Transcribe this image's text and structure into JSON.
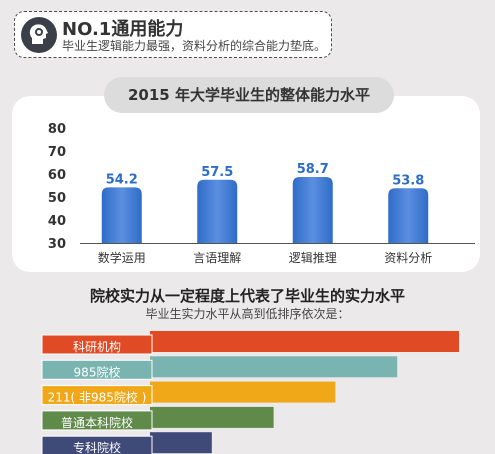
{
  "header": {
    "title": "NO.1通用能力",
    "subtitle": "毕业生逻辑能力最强，资料分析的综合能力垫底。",
    "icon": "gear-head-icon"
  },
  "chart_data": [
    {
      "type": "bar",
      "title": "2015 年大学毕业生的整体能力水平",
      "categories": [
        "数学运用",
        "言语理解",
        "逻辑推理",
        "资料分析"
      ],
      "values": [
        54.2,
        57.5,
        58.7,
        53.8
      ],
      "yticks": [
        30,
        40,
        50,
        60,
        70,
        80
      ],
      "ylim": [
        30,
        80
      ],
      "grid": false,
      "colors": {
        "bar": "#2f6cc8",
        "bar_highlight": "#5b8fe0"
      }
    },
    {
      "type": "bar",
      "orientation": "horizontal",
      "title": "院校实力从一定程度上代表了毕业生的实力水平",
      "subtitle": "毕业生实力水平从高到低排序依次是：",
      "categories": [
        "科研机构",
        "985院校",
        "211（非985院校）",
        "普通本科院校",
        "专科院校"
      ],
      "values": [
        5,
        4,
        3,
        2,
        1
      ],
      "colors": [
        "#e04a24",
        "#7ab4b0",
        "#f0a818",
        "#5f8a4a",
        "#3f4a78"
      ]
    }
  ],
  "rank_labels": [
    "科研机构",
    "985院校",
    "211( 非985院校 )",
    "普通本科院校",
    "专科院校"
  ]
}
